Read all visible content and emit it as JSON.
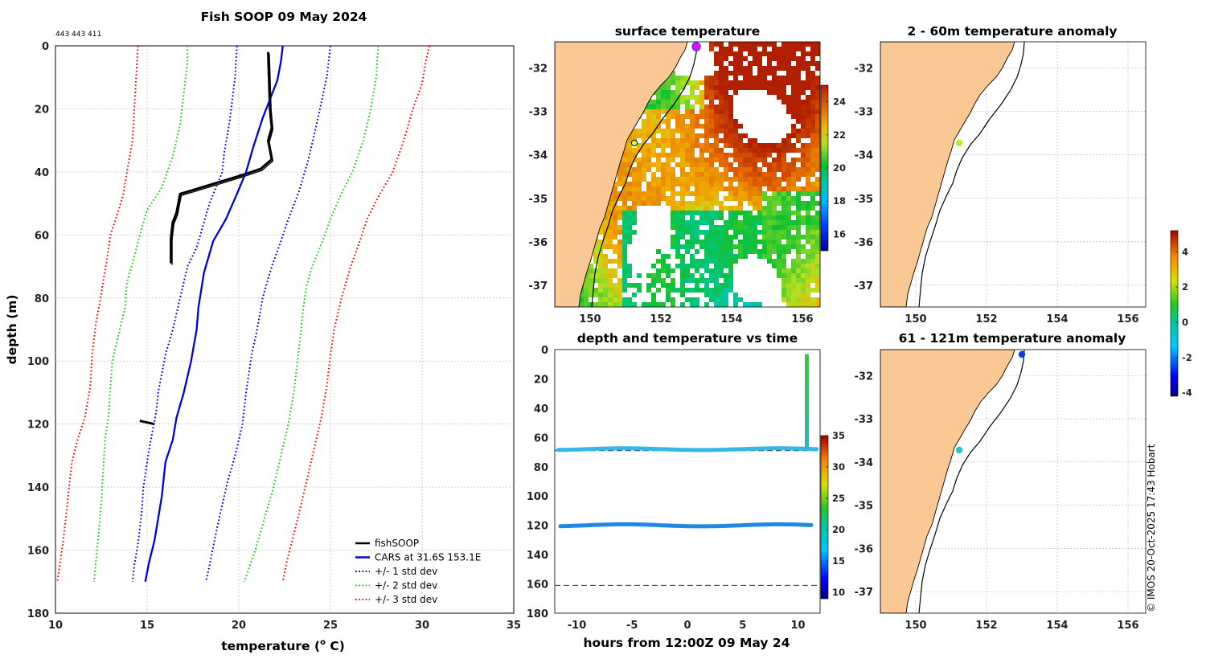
{
  "colors": {
    "land": "#f9c894",
    "fishSOOP": "#000000",
    "cars": "#0000dd",
    "std1": "#0000ee",
    "std2": "#22cc22",
    "std3": "#ee1111",
    "grid": "#b0b0b0"
  },
  "chart_data": [
    {
      "id": "profile",
      "type": "line",
      "title": "Fish SOOP 09 May 2024",
      "annotation": "443 443 411",
      "xlabel_main": "temperature (",
      "xlabel_sup": "o",
      "xlabel_end": " C)",
      "ylabel": "depth (m)",
      "xlim": [
        10,
        35
      ],
      "ylim": [
        0,
        180
      ],
      "y_inverted": true,
      "xticks": [
        "10",
        "15",
        "20",
        "25",
        "30",
        "35"
      ],
      "yticks": [
        "0",
        "20",
        "40",
        "60",
        "80",
        "100",
        "120",
        "140",
        "160",
        "180"
      ],
      "legend_location": "bottom-right",
      "legend": [
        {
          "label": "fishSOOP",
          "style": "solid",
          "color": "#000000"
        },
        {
          "label": "CARS at 31.6S 153.1E",
          "style": "solid",
          "color": "#0000dd"
        },
        {
          "label": "+/- 1 std dev",
          "style": "dotted",
          "color": "#0000ee"
        },
        {
          "label": "+/- 2 std dev",
          "style": "dotted",
          "color": "#22cc22"
        },
        {
          "label": "+/- 3 std dev",
          "style": "dotted",
          "color": "#ee1111"
        }
      ],
      "series": [
        {
          "name": "fishSOOP",
          "color": "#000000",
          "width": 3,
          "points": [
            [
              21.6,
              2
            ],
            [
              21.7,
              20
            ],
            [
              21.8,
              26
            ],
            [
              21.6,
              30
            ],
            [
              21.8,
              36
            ],
            [
              21.2,
              39
            ],
            [
              20.2,
              41
            ],
            [
              18.5,
              44
            ],
            [
              16.8,
              47
            ],
            [
              16.6,
              53
            ],
            [
              16.4,
              56
            ],
            [
              16.3,
              61
            ],
            [
              16.3,
              69
            ]
          ]
        },
        {
          "name": "fishSOOP-deep",
          "color": "#000000",
          "width": 3,
          "points": [
            [
              14.6,
              119
            ],
            [
              15.0,
              119.5
            ],
            [
              15.4,
              120
            ]
          ]
        },
        {
          "name": "CARS",
          "color": "#0000dd",
          "width": 2.3,
          "points": [
            [
              22.4,
              0
            ],
            [
              22.3,
              5
            ],
            [
              22.1,
              11
            ],
            [
              21.3,
              23
            ],
            [
              20.8,
              32
            ],
            [
              20.4,
              40
            ],
            [
              19.9,
              47
            ],
            [
              19.3,
              55
            ],
            [
              18.6,
              62
            ],
            [
              18.1,
              72
            ],
            [
              17.8,
              83
            ],
            [
              17.7,
              90
            ],
            [
              17.4,
              100
            ],
            [
              17.0,
              110
            ],
            [
              16.6,
              118
            ],
            [
              16.4,
              125
            ],
            [
              16.0,
              132
            ],
            [
              15.8,
              143
            ],
            [
              15.6,
              150
            ],
            [
              15.4,
              157
            ],
            [
              15.1,
              164
            ],
            [
              14.9,
              170
            ]
          ]
        },
        {
          "name": "-1 std",
          "color": "#0000ee",
          "width": 2,
          "dotted": true,
          "points": [
            [
              19.9,
              0
            ],
            [
              19.8,
              10
            ],
            [
              19.5,
              24
            ],
            [
              19.2,
              34
            ],
            [
              19.1,
              40
            ],
            [
              18.4,
              50
            ],
            [
              18.0,
              58
            ],
            [
              17.7,
              64
            ],
            [
              17.2,
              70
            ],
            [
              16.8,
              80
            ],
            [
              16.4,
              90
            ],
            [
              16.0,
              98
            ],
            [
              15.6,
              110
            ],
            [
              15.5,
              116
            ],
            [
              15.2,
              125
            ],
            [
              15.0,
              132
            ],
            [
              14.8,
              140
            ],
            [
              14.7,
              148
            ],
            [
              14.5,
              158
            ],
            [
              14.3,
              165
            ],
            [
              14.2,
              170
            ]
          ]
        },
        {
          "name": "+1 std",
          "color": "#0000ee",
          "width": 2,
          "dotted": true,
          "points": [
            [
              25.0,
              0
            ],
            [
              24.8,
              10
            ],
            [
              24.5,
              18
            ],
            [
              24.2,
              26
            ],
            [
              23.8,
              36
            ],
            [
              23.3,
              46
            ],
            [
              22.7,
              55
            ],
            [
              22.3,
              62
            ],
            [
              21.8,
              70
            ],
            [
              21.3,
              80
            ],
            [
              21.0,
              90
            ],
            [
              20.7,
              98
            ],
            [
              20.4,
              110
            ],
            [
              20.2,
              120
            ],
            [
              19.8,
              130
            ],
            [
              19.4,
              138
            ],
            [
              19.0,
              148
            ],
            [
              18.7,
              156
            ],
            [
              18.4,
              165
            ],
            [
              18.2,
              170
            ]
          ]
        },
        {
          "name": "-2 std",
          "color": "#22cc22",
          "width": 2,
          "dotted": true,
          "points": [
            [
              17.2,
              0
            ],
            [
              17.2,
              5
            ],
            [
              16.9,
              20
            ],
            [
              16.8,
              25
            ],
            [
              16.4,
              35
            ],
            [
              15.8,
              45
            ],
            [
              15.0,
              52
            ],
            [
              14.6,
              60
            ],
            [
              14.3,
              67
            ],
            [
              13.9,
              75
            ],
            [
              13.8,
              83
            ],
            [
              13.5,
              90
            ],
            [
              13.1,
              100
            ],
            [
              13.0,
              108
            ],
            [
              12.9,
              117
            ],
            [
              12.7,
              125
            ],
            [
              12.6,
              135
            ],
            [
              12.5,
              145
            ],
            [
              12.3,
              158
            ],
            [
              12.1,
              170
            ]
          ]
        },
        {
          "name": "+2 std",
          "color": "#22cc22",
          "width": 2,
          "dotted": true,
          "points": [
            [
              27.6,
              0
            ],
            [
              27.5,
              10
            ],
            [
              27.2,
              20
            ],
            [
              26.8,
              30
            ],
            [
              26.2,
              40
            ],
            [
              25.5,
              48
            ],
            [
              25.0,
              55
            ],
            [
              24.5,
              63
            ],
            [
              24.0,
              70
            ],
            [
              23.7,
              76
            ],
            [
              23.5,
              84
            ],
            [
              23.4,
              90
            ],
            [
              23.2,
              100
            ],
            [
              23.0,
              110
            ],
            [
              22.7,
              120
            ],
            [
              22.3,
              130
            ],
            [
              21.9,
              140
            ],
            [
              21.4,
              150
            ],
            [
              20.9,
              160
            ],
            [
              20.3,
              170
            ]
          ]
        },
        {
          "name": "-3 std",
          "color": "#ee1111",
          "width": 2,
          "dotted": true,
          "points": [
            [
              14.5,
              0
            ],
            [
              14.4,
              10
            ],
            [
              14.3,
              20
            ],
            [
              14.2,
              30
            ],
            [
              13.9,
              40
            ],
            [
              13.7,
              47
            ],
            [
              13.4,
              53
            ],
            [
              13.0,
              60
            ],
            [
              12.8,
              68
            ],
            [
              12.6,
              75
            ],
            [
              12.4,
              82
            ],
            [
              12.2,
              88
            ],
            [
              12.0,
              98
            ],
            [
              11.9,
              108
            ],
            [
              11.6,
              118
            ],
            [
              11.2,
              125
            ],
            [
              10.9,
              132
            ],
            [
              10.7,
              142
            ],
            [
              10.6,
              148
            ],
            [
              10.4,
              158
            ],
            [
              10.1,
              170
            ]
          ]
        },
        {
          "name": "+3 std",
          "color": "#ee1111",
          "width": 2,
          "dotted": true,
          "points": [
            [
              30.4,
              0
            ],
            [
              30.2,
              5
            ],
            [
              30.0,
              12
            ],
            [
              29.5,
              20
            ],
            [
              29.0,
              30
            ],
            [
              28.4,
              40
            ],
            [
              27.6,
              48
            ],
            [
              27.0,
              55
            ],
            [
              26.6,
              62
            ],
            [
              26.1,
              70
            ],
            [
              25.6,
              80
            ],
            [
              25.2,
              90
            ],
            [
              25.0,
              98
            ],
            [
              24.8,
              108
            ],
            [
              24.5,
              118
            ],
            [
              24.1,
              128
            ],
            [
              23.7,
              138
            ],
            [
              23.3,
              148
            ],
            [
              23.0,
              155
            ],
            [
              22.6,
              164
            ],
            [
              22.4,
              170
            ]
          ]
        }
      ]
    },
    {
      "id": "sst",
      "type": "heatmap",
      "title": "surface temperature",
      "xlim": [
        149.0,
        156.5
      ],
      "ylim": [
        -37.5,
        -31.4
      ],
      "xticks": [
        "150",
        "152",
        "154",
        "156"
      ],
      "yticks": [
        "-32",
        "-33",
        "-34",
        "-35",
        "-36",
        "-37"
      ],
      "colorbar": {
        "min": 15,
        "max": 25,
        "ticks": [
          "16",
          "18",
          "20",
          "22",
          "24"
        ]
      },
      "markers": [
        {
          "lon": 153.1,
          "lat": -31.6,
          "color": "#ff00ff",
          "label": "vessel"
        },
        {
          "lon": 151.4,
          "lat": -33.8,
          "color": "#c8ff33",
          "label": "port"
        }
      ]
    },
    {
      "id": "depth_time",
      "type": "scatter",
      "title": "depth and temperature vs time",
      "xlabel": "hours from 12:00Z 09 May 24",
      "xlim": [
        -12,
        12
      ],
      "ylim": [
        0,
        180
      ],
      "y_inverted": true,
      "xticks": [
        "-10",
        "-5",
        "0",
        "5",
        "10"
      ],
      "yticks": [
        "0",
        "20",
        "40",
        "60",
        "80",
        "100",
        "120",
        "140",
        "160",
        "180"
      ],
      "dashed_lines": [
        69,
        161
      ],
      "colorbar": {
        "min": 9,
        "max": 35,
        "ticks": [
          "10",
          "15",
          "20",
          "25",
          "30",
          "35"
        ]
      },
      "series": [
        {
          "name": "shallow trace",
          "depth": 68,
          "temperature": 16.3,
          "hours": [
            -11.7,
            11.7
          ]
        },
        {
          "name": "deep trace",
          "depth": 120,
          "temperature": 15.0,
          "hours": [
            -11.5,
            11.2
          ]
        },
        {
          "name": "cast",
          "hour": 10.8,
          "depth_range": [
            3,
            68
          ],
          "temperature_top": 21.6,
          "temperature_bottom": 16.3
        }
      ]
    },
    {
      "id": "anom_shallow",
      "type": "scatter",
      "title": "2 - 60m temperature anomaly",
      "xlim": [
        149.0,
        156.5
      ],
      "ylim": [
        -37.5,
        -31.4
      ],
      "xticks": [
        "150",
        "152",
        "154",
        "156"
      ],
      "yticks": [
        "-32",
        "-33",
        "-34",
        "-35",
        "-36",
        "-37"
      ],
      "points": [
        {
          "lon": 151.4,
          "lat": -33.8,
          "anomaly": 1.2
        }
      ]
    },
    {
      "id": "anom_deep",
      "type": "scatter",
      "title": "61 - 121m temperature anomaly",
      "xlim": [
        149.0,
        156.5
      ],
      "ylim": [
        -37.5,
        -31.4
      ],
      "xticks": [
        "150",
        "152",
        "154",
        "156"
      ],
      "yticks": [
        "-32",
        "-33",
        "-34",
        "-35",
        "-36",
        "-37"
      ],
      "points": [
        {
          "lon": 153.1,
          "lat": -31.6,
          "anomaly": -3.2
        },
        {
          "lon": 151.4,
          "lat": -33.8,
          "anomaly": -1.6
        }
      ]
    },
    {
      "id": "anomaly_colorbar",
      "type": "colorbar",
      "min": -4.2,
      "max": 5.2,
      "ticks": [
        "4",
        "2",
        "0",
        "-2",
        "-4"
      ]
    }
  ],
  "footer": {
    "credit": "© IMOS 20-Oct-2025 17:43 Hobart"
  }
}
